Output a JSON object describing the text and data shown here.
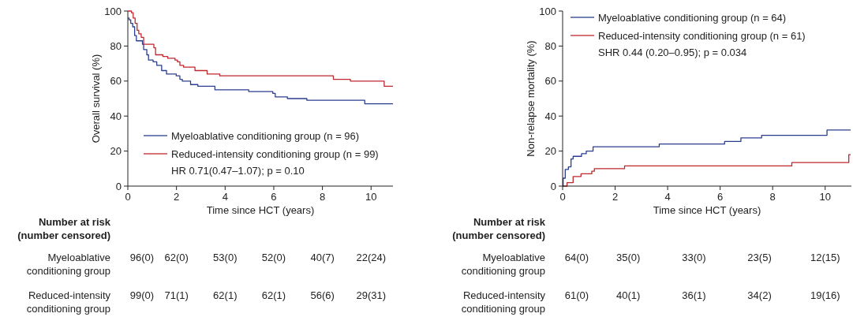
{
  "chart_data": [
    {
      "type": "step",
      "xlabel": "Time since HCT (years)",
      "ylabel": "Overall survival (%)",
      "xlim": [
        0,
        10.9
      ],
      "ylim": [
        0,
        100
      ],
      "xticks": [
        0,
        2,
        4,
        6,
        8,
        10
      ],
      "yticks": [
        0,
        20,
        40,
        60,
        80,
        100
      ],
      "legend": "bottom",
      "grid": false,
      "series": [
        {
          "name": "Myeloablative conditioning group (n = 96)",
          "color": "#2b3f8f",
          "x": [
            0,
            0.05,
            0.12,
            0.2,
            0.28,
            0.35,
            0.6,
            0.65,
            0.78,
            0.85,
            1.04,
            1.19,
            1.39,
            1.59,
            1.99,
            2.14,
            2.24,
            2.58,
            2.88,
            3.58,
            4.97,
            5.96,
            6.06,
            6.56,
            7.36,
            9.74,
            10.9
          ],
          "values": [
            96,
            95,
            93,
            91,
            86,
            83,
            81,
            78,
            75,
            72,
            71,
            69,
            66,
            64,
            63,
            61,
            60,
            58,
            57,
            55,
            54,
            53,
            51,
            50,
            49,
            47,
            47
          ]
        },
        {
          "name": "Reduced-intensity conditioning group (n = 99)",
          "color": "#c0272d",
          "x": [
            0,
            0.15,
            0.22,
            0.3,
            0.38,
            0.45,
            0.55,
            0.65,
            0.94,
            1.07,
            1.14,
            1.44,
            1.64,
            1.94,
            2.04,
            2.14,
            2.29,
            2.76,
            3.26,
            3.78,
            7.26,
            8.45,
            9.15,
            10.54,
            10.9
          ],
          "values": [
            100,
            99,
            96,
            93,
            89,
            87,
            85,
            81,
            81,
            79,
            75,
            74,
            73,
            72,
            71,
            69,
            68,
            66,
            64,
            63,
            63,
            61,
            60,
            57,
            57
          ]
        }
      ],
      "annotations": [
        "HR 0.71(0.47–1.07); p = 0.10",
        "Number at risk (number censored)",
        "Myeloablative conditioning group",
        "96(0)",
        "62(0)",
        "53(0)",
        "52(0)",
        "40(7)",
        "22(24)",
        "Reduced-intensity conditioning group",
        "99(0)",
        "71(1)",
        "62(1)",
        "62(1)",
        "56(6)",
        "29(31)"
      ]
    },
    {
      "type": "step",
      "xlabel": "Time since HCT (years)",
      "ylabel": "Non-relapse mortality (%)",
      "xlim": [
        0,
        11
      ],
      "ylim": [
        0,
        100
      ],
      "xticks": [
        0,
        2,
        4,
        6,
        8,
        10
      ],
      "yticks": [
        0,
        20,
        40,
        60,
        80,
        100
      ],
      "legend": "top left",
      "grid": false,
      "series": [
        {
          "name": "Myeloablative conditioning group (n = 64)",
          "color": "#2b3f8f",
          "x": [
            0,
            0.02,
            0.1,
            0.22,
            0.32,
            0.4,
            0.72,
            0.9,
            1.16,
            3.68,
            6.17,
            6.79,
            7.58,
            10.07,
            10.97
          ],
          "values": [
            0,
            4.5,
            9.5,
            11,
            15.5,
            17,
            18.5,
            20,
            22.5,
            24,
            25.5,
            27.5,
            29,
            32,
            32
          ]
        },
        {
          "name": "Reduced-intensity conditioning group (n = 61)",
          "color": "#c0272d",
          "x": [
            0,
            0.17,
            0.4,
            0.7,
            1.11,
            1.21,
            2.36,
            8.73,
            10.9,
            10.97
          ],
          "values": [
            0,
            2,
            5.5,
            7,
            8.5,
            10,
            11.5,
            13.5,
            18,
            18
          ]
        }
      ],
      "annotations": [
        "SHR 0.44 (0.20–0.95); p = 0.034",
        "Number at risk (number censored)",
        "Myeloablative conditioning group",
        "64(0)",
        "35(0)",
        "33(0)",
        "23(5)",
        "12(15)",
        "Reduced-intensity conditioning group",
        "61(0)",
        "40(1)",
        "36(1)",
        "34(2)",
        "19(16)"
      ]
    }
  ]
}
